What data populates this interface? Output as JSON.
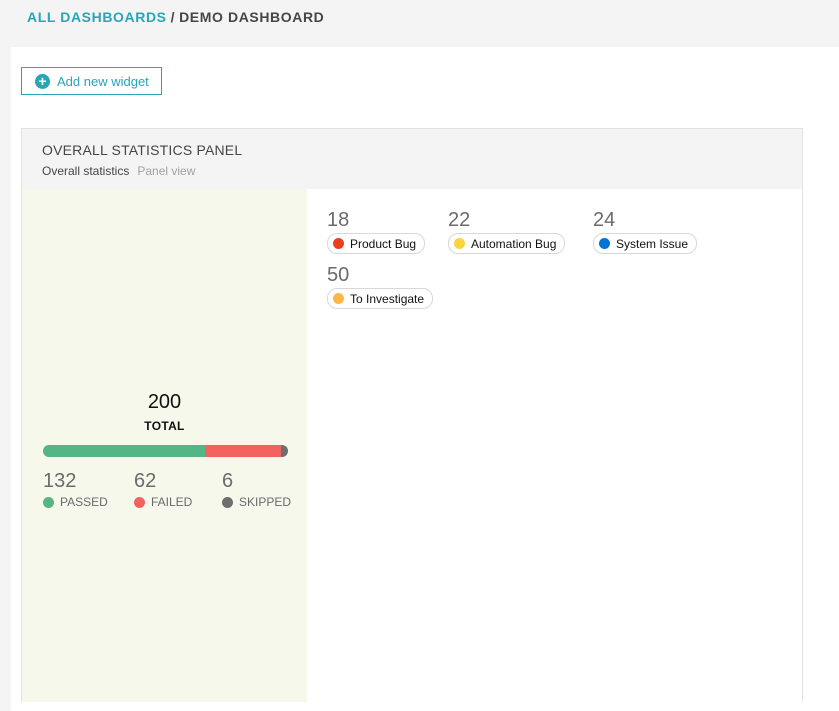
{
  "breadcrumb": {
    "root": "ALL DASHBOARDS",
    "separator": "/",
    "current": "DEMO DASHBOARD"
  },
  "toolbar": {
    "add_widget_label": "Add new widget",
    "add_icon": "plus-circle-icon"
  },
  "widget": {
    "title": "OVERALL STATISTICS PANEL",
    "name": "Overall statistics",
    "view": "Panel view",
    "summary": {
      "total": "200",
      "total_label": "TOTAL",
      "stats": [
        {
          "value": "132",
          "label": "PASSED",
          "color": "#55b685"
        },
        {
          "value": "62",
          "label": "FAILED",
          "color": "#f2625e"
        },
        {
          "value": "6",
          "label": "SKIPPED",
          "color": "#6e6e6e"
        }
      ]
    },
    "defects": [
      {
        "value": "18",
        "label": "Product Bug",
        "color": "#ea3e1c"
      },
      {
        "value": "22",
        "label": "Automation Bug",
        "color": "#f7d63e"
      },
      {
        "value": "24",
        "label": "System Issue",
        "color": "#0274d1"
      },
      {
        "value": "50",
        "label": "To Investigate",
        "color": "#ffb743"
      }
    ]
  }
}
